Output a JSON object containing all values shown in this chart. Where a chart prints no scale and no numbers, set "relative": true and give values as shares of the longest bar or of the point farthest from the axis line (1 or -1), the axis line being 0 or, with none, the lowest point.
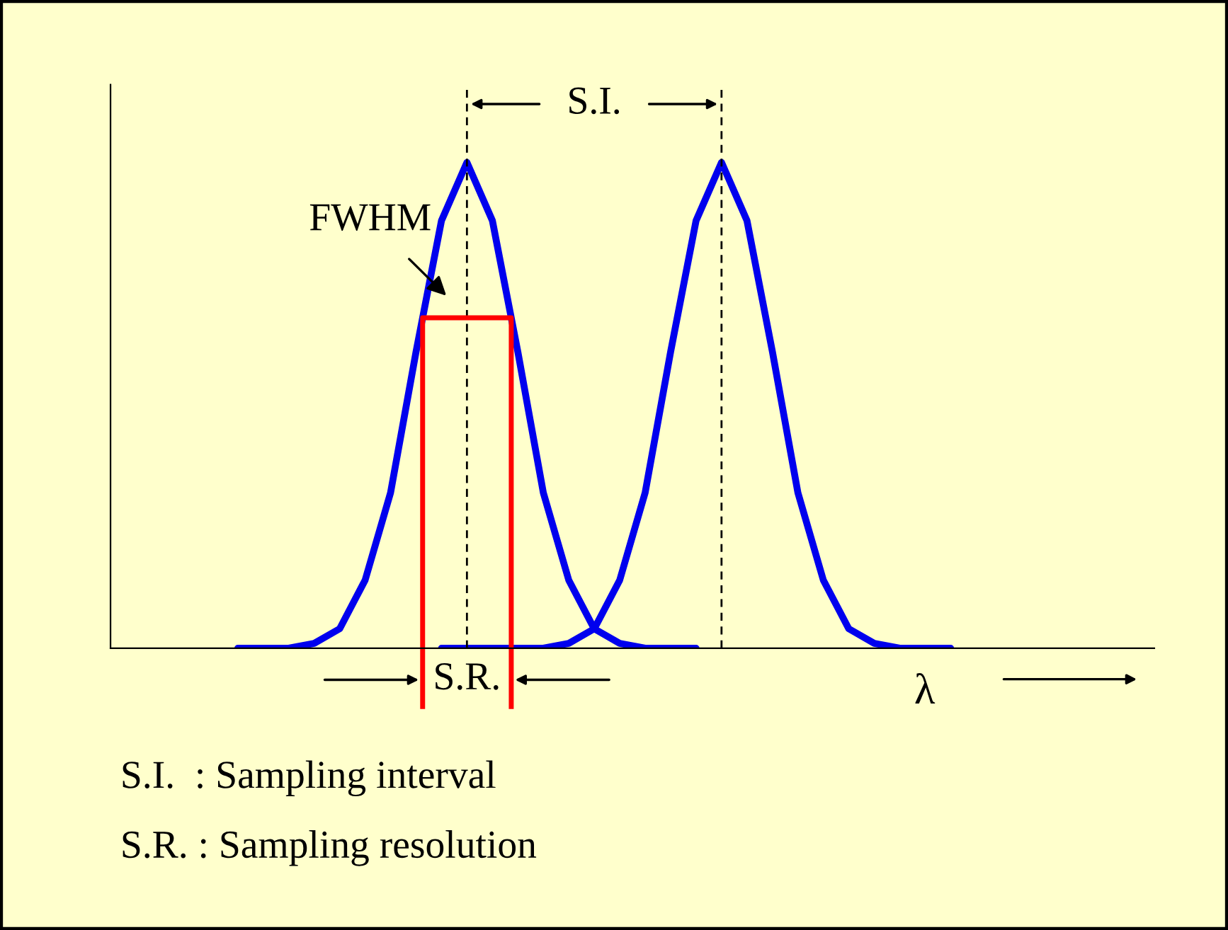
{
  "chart_data": {
    "type": "line",
    "relative": true,
    "xlabel": "λ",
    "marker": "none",
    "line_style": "solid",
    "categories": [
      null,
      null,
      null,
      null,
      null,
      null,
      null,
      null,
      null,
      null,
      null,
      null,
      null,
      null,
      null,
      null,
      null,
      null,
      null,
      null,
      null,
      null,
      null,
      null,
      null,
      null,
      null,
      null,
      null,
      null,
      null,
      null,
      null,
      null,
      null,
      null,
      null,
      null,
      null,
      null,
      null,
      null
    ],
    "series": [
      {
        "color": "#0000ee",
        "values": [
          null,
          null,
          null,
          null,
          null,
          0,
          0,
          0,
          0.01,
          0.04,
          0.14,
          0.32,
          0.61,
          0.88,
          1,
          0.88,
          0.61,
          0.32,
          0.14,
          0.04,
          0.01,
          0,
          0,
          0,
          null,
          null,
          null,
          null,
          null,
          null,
          null,
          null,
          null,
          null,
          null,
          null,
          null,
          null,
          null,
          null,
          null,
          null
        ]
      },
      {
        "color": "#0000ee",
        "values": [
          null,
          null,
          null,
          null,
          null,
          null,
          null,
          null,
          null,
          null,
          null,
          null,
          null,
          0,
          0,
          0,
          0,
          0,
          0.01,
          0.04,
          0.14,
          0.32,
          0.61,
          0.88,
          1,
          0.88,
          0.61,
          0.32,
          0.14,
          0.04,
          0.01,
          0,
          0,
          0,
          null,
          null,
          null,
          null,
          null,
          null,
          null,
          null
        ]
      }
    ],
    "annotations": [
      "S.I.",
      "S.R.",
      "FWHM",
      "S.I.  : Sampling interval",
      "S.R. : Sampling resolution"
    ]
  }
}
